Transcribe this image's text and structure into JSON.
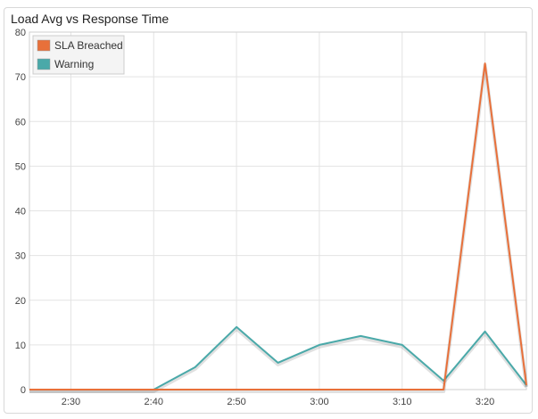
{
  "chart_data": {
    "type": "line",
    "title": "Load Avg vs Response Time",
    "xlabel": "",
    "ylabel": "",
    "x": [
      "2:25",
      "2:30",
      "2:35",
      "2:40",
      "2:45",
      "2:50",
      "2:55",
      "3:00",
      "3:05",
      "3:10",
      "3:15",
      "3:20",
      "3:25"
    ],
    "x_tick_labels": [
      "2:30",
      "2:40",
      "2:50",
      "3:00",
      "3:10",
      "3:20"
    ],
    "ylim": [
      0,
      80
    ],
    "y_tick_labels": [
      "0",
      "10",
      "20",
      "30",
      "40",
      "50",
      "60",
      "70",
      "80"
    ],
    "grid": true,
    "legend_position": "top-left",
    "series": [
      {
        "name": "SLA Breached",
        "color": "#e8703a",
        "values": [
          0,
          0,
          0,
          0,
          0,
          0,
          0,
          0,
          0,
          0,
          0,
          73,
          1
        ]
      },
      {
        "name": "Warning",
        "color": "#4aa9a9",
        "values": [
          0,
          0,
          0,
          0,
          5,
          14,
          6,
          10,
          12,
          10,
          2,
          13,
          1
        ]
      }
    ]
  }
}
